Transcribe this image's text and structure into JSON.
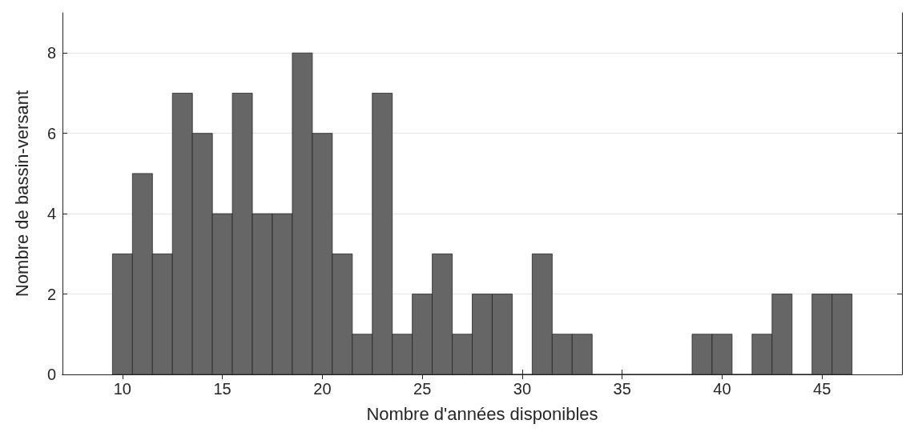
{
  "chart_data": {
    "type": "histogram",
    "xlabel": "Nombre d'années disponibles",
    "ylabel": "Nombre de bassin-versant",
    "bins": [
      9.5,
      10.5,
      11.5,
      12.5,
      13.5,
      14.5,
      15.5,
      16.5,
      17.5,
      18.5,
      19.5,
      20.5,
      21.5,
      22.5,
      23.5,
      24.5,
      25.5,
      26.5,
      27.5,
      28.5,
      29.5,
      30.5,
      31.5,
      32.5,
      33.5,
      34.5,
      35.5,
      36.5,
      37.5,
      38.5,
      39.5,
      40.5,
      41.5,
      42.5,
      43.5,
      44.5,
      45.5,
      46.5
    ],
    "values": [
      3,
      5,
      3,
      7,
      6,
      4,
      7,
      4,
      4,
      8,
      6,
      3,
      1,
      7,
      1,
      2,
      3,
      1,
      2,
      2,
      0,
      3,
      1,
      1,
      0,
      0,
      0,
      0,
      0,
      1,
      1,
      0,
      1,
      2,
      0,
      2,
      2
    ],
    "color": "#666666",
    "xlim": [
      7,
      49
    ],
    "xticks": [
      10,
      15,
      20,
      25,
      30,
      35,
      40,
      45
    ],
    "ylim": [
      0,
      9
    ],
    "yticks": [
      0,
      2,
      4,
      6,
      8
    ],
    "grid": "y"
  }
}
